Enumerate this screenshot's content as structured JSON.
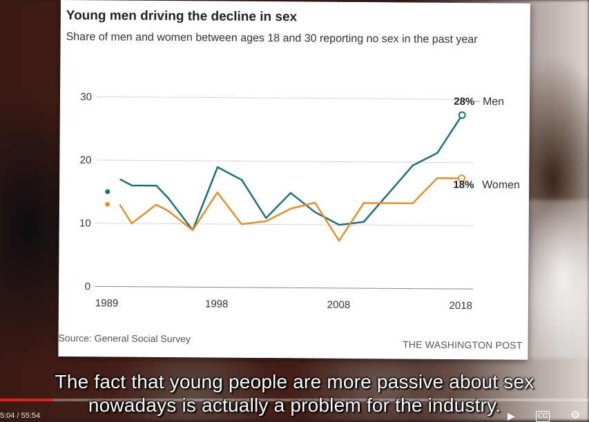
{
  "chart_data": {
    "type": "line",
    "title": "Young men driving the decline in sex",
    "subtitle": "Share of men and women between ages 18 and 30 reporting no sex in the past year",
    "ylim": [
      0,
      30
    ],
    "yticks": [
      "0",
      "10",
      "20",
      "30"
    ],
    "xlim": [
      1988,
      2019
    ],
    "xticks": [
      {
        "year": 1989,
        "label": "1989"
      },
      {
        "year": 1998,
        "label": "1998"
      },
      {
        "year": 2008,
        "label": "2008"
      },
      {
        "year": 2018,
        "label": "2018"
      }
    ],
    "grid": true,
    "series": [
      {
        "name": "Men",
        "color": "#1c6e7d",
        "end_label": "28%",
        "points": [
          [
            1989,
            15
          ],
          [
            1990,
            17
          ],
          [
            1991,
            16
          ],
          [
            1993,
            16
          ],
          [
            1994,
            14
          ],
          [
            1996,
            9
          ],
          [
            1998,
            19
          ],
          [
            2000,
            17
          ],
          [
            2002,
            11
          ],
          [
            2004,
            15
          ],
          [
            2006,
            12
          ],
          [
            2008,
            10
          ],
          [
            2010,
            10.5
          ],
          [
            2012,
            15
          ],
          [
            2014,
            19.5
          ],
          [
            2016,
            21.5
          ],
          [
            2018,
            27.5
          ]
        ]
      },
      {
        "name": "Women",
        "color": "#e38d2c",
        "end_label": "18%",
        "points": [
          [
            1989,
            13
          ],
          [
            1990,
            13
          ],
          [
            1991,
            10
          ],
          [
            1993,
            13
          ],
          [
            1994,
            12
          ],
          [
            1996,
            9
          ],
          [
            1998,
            15
          ],
          [
            2000,
            10
          ],
          [
            2002,
            10.5
          ],
          [
            2004,
            12.5
          ],
          [
            2006,
            13.5
          ],
          [
            2008,
            7.5
          ],
          [
            2010,
            13.5
          ],
          [
            2012,
            13.5
          ],
          [
            2014,
            13.5
          ],
          [
            2016,
            17.5
          ],
          [
            2018,
            17.5
          ]
        ]
      }
    ]
  },
  "source_text": "Source: General Social Survey",
  "credit_text": "THE WASHINGTON POST",
  "subtitles": {
    "line1": "The fact that young people are more passive about sex",
    "line2": "nowadays is actually a problem for the industry."
  },
  "player": {
    "time": "5:04 / 55:54",
    "progress": 0.09,
    "play_icon": "play-icon",
    "cc_icon": "cc-icon",
    "settings_icon": "gear-icon"
  }
}
